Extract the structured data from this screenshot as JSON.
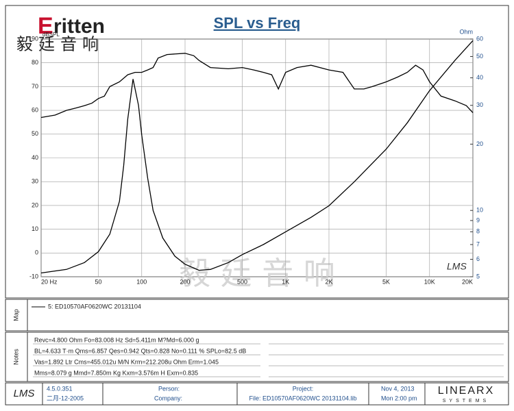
{
  "header": {
    "brand": "ritten",
    "brand_cn": "毅廷音响",
    "watermark_cn": "毅 廷 音 响",
    "watermark_lms": "LMS"
  },
  "chart_data": {
    "type": "line",
    "title": "SPL vs Freq",
    "y_label": "dBSPL",
    "y2_label": "Ohm",
    "log_x": true,
    "log_y2": true,
    "grid": true,
    "xlim": [
      20,
      20000
    ],
    "xticks": [
      {
        "value": 20,
        "label": "20 Hz"
      },
      50,
      100,
      200,
      500,
      {
        "value": 1000,
        "label": "1K"
      },
      {
        "value": 2000,
        "label": "2K"
      },
      {
        "value": 5000,
        "label": "5K"
      },
      {
        "value": 10000,
        "label": "10K"
      },
      {
        "value": 20000,
        "label": "20K"
      }
    ],
    "ylim": [
      -10,
      90
    ],
    "yticks": [
      -10,
      0,
      10,
      20,
      30,
      40,
      50,
      60,
      70,
      80,
      90
    ],
    "y2lim": [
      5,
      60
    ],
    "y2ticks": [
      5,
      6,
      7,
      8,
      9,
      10,
      20,
      30,
      40,
      50,
      60
    ],
    "series": [
      {
        "color": "#000000",
        "x": [
          20,
          25,
          30,
          35,
          40,
          45,
          50,
          55,
          60,
          70,
          80,
          90,
          100,
          110,
          120,
          130,
          150,
          200,
          230,
          250,
          300,
          400,
          500,
          600,
          700,
          800,
          890,
          1000,
          1200,
          1500,
          2000,
          2500,
          3000,
          3500,
          4000,
          5000,
          6000,
          7000,
          8000,
          9000,
          10000,
          12000,
          15000,
          18000,
          20000
        ],
        "values": [
          57,
          58,
          60,
          61,
          62,
          63,
          65,
          66,
          70,
          72,
          75,
          76,
          76,
          77,
          78,
          82,
          83.5,
          84,
          83,
          81,
          78,
          77.5,
          78,
          77,
          76,
          75,
          69,
          76,
          78,
          79,
          77,
          76,
          69,
          69,
          70,
          72,
          74,
          76,
          79,
          77,
          72,
          66,
          64,
          62,
          59
        ]
      },
      {
        "color": "#000000",
        "axis": "y2",
        "x": [
          20,
          30,
          40,
          50,
          60,
          70,
          75,
          80,
          87,
          95,
          100,
          110,
          120,
          140,
          170,
          200,
          250,
          300,
          400,
          500,
          700,
          1000,
          1500,
          2000,
          3000,
          5000,
          7000,
          10000,
          15000,
          20000
        ],
        "values": [
          5.2,
          5.4,
          5.8,
          6.5,
          7.8,
          11,
          16,
          26,
          39.5,
          30,
          22,
          14,
          10,
          7.5,
          6.2,
          5.7,
          5.35,
          5.4,
          5.8,
          6.3,
          7.0,
          8.0,
          9.3,
          10.5,
          13.5,
          19,
          25,
          35,
          48,
          59
        ]
      }
    ]
  },
  "map": {
    "label": "Map",
    "entry": "5: ED10570AF0620WC   20131104"
  },
  "notes": {
    "label": "Notes",
    "lines": [
      "Revc=4.800 Ohm  Fo=83.008 Hz  Sd=5.411m  M?Md=6.000 g",
      "BL=4.633 T·m  Qms=6.857  Qes=0.942  Qts=0.828  No=0.111 %  SPLo=82.5 dB",
      "Vas=1.892 Ltr  Cms=455.012u M/N  Krm=212.208u Ohm  Erm=1.045",
      "Mms=8.079 g  Mmd=7.850m Kg  Kxm=3.576m H  Exm=0.835"
    ]
  },
  "footer": {
    "logo": "LMS",
    "version": "4.5.0.351",
    "date_code": "二月-12-2005",
    "person": "Person:",
    "company": "Company:",
    "project": "Project:",
    "file": "File: ED10570AF0620WC 20131104.lib",
    "date": "Nov  4, 2013",
    "time": "Mon  2:00 pm",
    "vendor": "LINEARX",
    "vendor_sub": "SYSTEMS"
  }
}
